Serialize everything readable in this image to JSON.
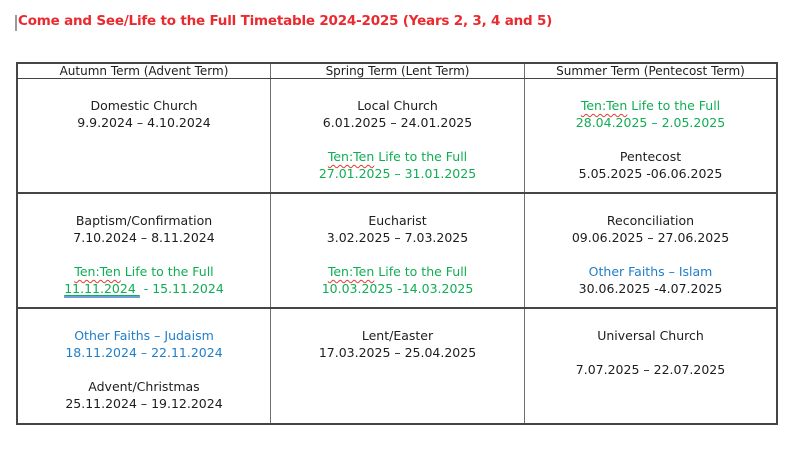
{
  "title": "Come and See/Life to the Full Timetable 2024-2025 (Years 2, 3, 4 and 5)",
  "colors": {
    "title": "#ea2a2e",
    "green": "#0fae53",
    "blue": "#1f7ec9",
    "text": "#1d1d1d",
    "border": "#454545",
    "grammar_line": "#6f9fd8",
    "spell_squiggle": "#e03c31"
  },
  "table": {
    "headers": [
      "Autumn Term (Advent Term)",
      "Spring Term (Lent Term)",
      "Summer Term (Pentecost Term)"
    ],
    "rows": [
      [
        [
          {
            "color": "text",
            "segs": [
              {
                "t": "Domestic Church"
              }
            ]
          },
          {
            "color": "text",
            "segs": [
              {
                "t": "9.9.2024 – 4.10.2024"
              }
            ]
          }
        ],
        [
          {
            "color": "text",
            "segs": [
              {
                "t": "Local Church"
              }
            ]
          },
          {
            "color": "text",
            "segs": [
              {
                "t": "6.01.2025 – 24.01.2025"
              }
            ]
          },
          {
            "blank": true
          },
          {
            "color": "green",
            "segs": [
              {
                "t": "Ten:Ten",
                "sq": true
              },
              {
                "t": " Life to the Full"
              }
            ]
          },
          {
            "color": "green",
            "segs": [
              {
                "t": "27.01.2025 – 31.01.2025"
              }
            ]
          }
        ],
        [
          {
            "color": "green",
            "segs": [
              {
                "t": "Ten:Ten",
                "sq": true
              },
              {
                "t": " Life to the Full"
              }
            ]
          },
          {
            "color": "green",
            "segs": [
              {
                "t": "28.04.2025 – 2.05.2025"
              }
            ]
          },
          {
            "blank": true
          },
          {
            "color": "text",
            "segs": [
              {
                "t": "Pentecost"
              }
            ]
          },
          {
            "color": "text",
            "segs": [
              {
                "t": "5.05.2025 -06.06.2025"
              }
            ]
          }
        ]
      ],
      [
        [
          {
            "color": "text",
            "segs": [
              {
                "t": "Baptism/Confirmation"
              }
            ]
          },
          {
            "color": "text",
            "segs": [
              {
                "t": "7.10.2024 – 8.11.2024"
              }
            ]
          },
          {
            "blank": true
          },
          {
            "color": "green",
            "segs": [
              {
                "t": "Ten:Ten",
                "sq": true
              },
              {
                "t": " Life to the Full"
              }
            ]
          },
          {
            "color": "green",
            "segs": [
              {
                "t": "11.11.2024 ",
                "ub": true
              },
              {
                "t": " - 15.11.2024"
              }
            ]
          }
        ],
        [
          {
            "color": "text",
            "segs": [
              {
                "t": "Eucharist"
              }
            ]
          },
          {
            "color": "text",
            "segs": [
              {
                "t": "3.02.2025 – 7.03.2025"
              }
            ]
          },
          {
            "blank": true
          },
          {
            "color": "green",
            "segs": [
              {
                "t": "Ten:Ten",
                "sq": true
              },
              {
                "t": " Life to the Full"
              }
            ]
          },
          {
            "color": "green",
            "segs": [
              {
                "t": "10.03.2025 -14.03.2025"
              }
            ]
          }
        ],
        [
          {
            "color": "text",
            "segs": [
              {
                "t": "Reconciliation"
              }
            ]
          },
          {
            "color": "text",
            "segs": [
              {
                "t": "09.06.2025 – 27.06.2025"
              }
            ]
          },
          {
            "blank": true
          },
          {
            "color": "blue",
            "segs": [
              {
                "t": "Other Faiths – Islam"
              }
            ]
          },
          {
            "color": "text",
            "segs": [
              {
                "t": "30.06.2025 -4.07.2025"
              }
            ]
          }
        ]
      ],
      [
        [
          {
            "color": "blue",
            "segs": [
              {
                "t": "Other Faiths – Judaism"
              }
            ]
          },
          {
            "color": "blue",
            "segs": [
              {
                "t": "18.11.2024 – 22.11.2024"
              }
            ]
          },
          {
            "blank": true
          },
          {
            "color": "text",
            "segs": [
              {
                "t": "Advent/Christmas"
              }
            ]
          },
          {
            "color": "text",
            "segs": [
              {
                "t": "25.11.2024 – 19.12.2024"
              }
            ]
          }
        ],
        [
          {
            "color": "text",
            "segs": [
              {
                "t": "Lent/Easter"
              }
            ]
          },
          {
            "color": "text",
            "segs": [
              {
                "t": "17.03.2025 – 25.04.2025"
              }
            ]
          }
        ],
        [
          {
            "color": "text",
            "segs": [
              {
                "t": "Universal Church"
              }
            ]
          },
          {
            "blank": true
          },
          {
            "color": "text",
            "segs": [
              {
                "t": "7.07.2025 – 22.07.2025"
              }
            ]
          }
        ]
      ]
    ]
  }
}
